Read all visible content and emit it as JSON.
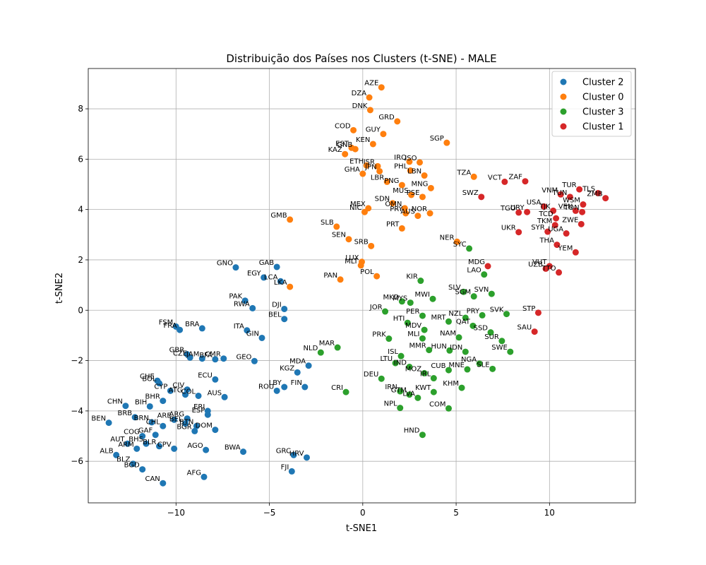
{
  "chart_data": {
    "type": "scatter",
    "title": "Distribuição dos Países nos Clusters (t-SNE) - MALE",
    "xlabel": "t-SNE1",
    "ylabel": "t-SNE2",
    "xlim": [
      -14.7,
      14.6
    ],
    "ylim": [
      -7.65,
      9.6
    ],
    "xticks": [
      -10,
      -5,
      0,
      5,
      10
    ],
    "yticks": [
      -6,
      -4,
      -2,
      0,
      2,
      4,
      6,
      8
    ],
    "grid": true,
    "legend_position": "top-right",
    "series": [
      {
        "name": "Cluster 2",
        "color": "#1f77b4",
        "points": [
          {
            "label": "GNO",
            "x": -6.8,
            "y": 1.7
          },
          {
            "label": "GAB",
            "x": -4.6,
            "y": 1.72
          },
          {
            "label": "EGY",
            "x": -5.3,
            "y": 1.3
          },
          {
            "label": "LCA",
            "x": -4.4,
            "y": 1.15
          },
          {
            "label": "PAK",
            "x": -6.3,
            "y": 0.38
          },
          {
            "label": "RWA",
            "x": -5.9,
            "y": 0.08
          },
          {
            "label": "DJI",
            "x": -4.2,
            "y": 0.05
          },
          {
            "label": "BEL",
            "x": -4.2,
            "y": -0.35
          },
          {
            "label": "ITA",
            "x": -6.2,
            "y": -0.8
          },
          {
            "label": "GIN",
            "x": -5.4,
            "y": -1.1
          },
          {
            "label": "FSM",
            "x": -10.0,
            "y": -0.65
          },
          {
            "label": "FRA",
            "x": -9.8,
            "y": -0.78
          },
          {
            "label": "BRA",
            "x": -8.6,
            "y": -0.72
          },
          {
            "label": "GBR",
            "x": -9.4,
            "y": -1.75
          },
          {
            "label": "CZE",
            "x": -9.25,
            "y": -1.88
          },
          {
            "label": "JAM",
            "x": -8.6,
            "y": -1.92
          },
          {
            "label": "BFA",
            "x": -7.9,
            "y": -1.95
          },
          {
            "label": "CMR",
            "x": -7.45,
            "y": -1.92
          },
          {
            "label": "GEO",
            "x": -5.8,
            "y": -2.02
          },
          {
            "label": "MDA",
            "x": -2.9,
            "y": -2.2
          },
          {
            "label": "KGZ",
            "x": -3.5,
            "y": -2.47
          },
          {
            "label": "CHE",
            "x": -11.0,
            "y": -2.8
          },
          {
            "label": "BOL",
            "x": -10.9,
            "y": -2.9
          },
          {
            "label": "ECU",
            "x": -7.9,
            "y": -2.75
          },
          {
            "label": "CYP",
            "x": -10.3,
            "y": -3.2
          },
          {
            "label": "CIV",
            "x": -9.4,
            "y": -3.15
          },
          {
            "label": "ATG",
            "x": -9.5,
            "y": -3.35
          },
          {
            "label": "COL",
            "x": -8.8,
            "y": -3.4
          },
          {
            "label": "AUS",
            "x": -7.4,
            "y": -3.45
          },
          {
            "label": "LBY",
            "x": -4.2,
            "y": -3.05
          },
          {
            "label": "FIN",
            "x": -3.1,
            "y": -3.05
          },
          {
            "label": "ROU",
            "x": -4.6,
            "y": -3.2
          },
          {
            "label": "BHR",
            "x": -10.7,
            "y": -3.6
          },
          {
            "label": "CHN",
            "x": -12.7,
            "y": -3.8
          },
          {
            "label": "BIH",
            "x": -11.4,
            "y": -3.82
          },
          {
            "label": "ERI",
            "x": -8.3,
            "y": -4.0
          },
          {
            "label": "ESP",
            "x": -8.3,
            "y": -4.15
          },
          {
            "label": "BRB",
            "x": -12.2,
            "y": -4.25
          },
          {
            "label": "ARE",
            "x": -10.1,
            "y": -4.35
          },
          {
            "label": "ARG",
            "x": -9.4,
            "y": -4.3
          },
          {
            "label": "BRN",
            "x": -11.3,
            "y": -4.45
          },
          {
            "label": "BEL2",
            "x": -9.5,
            "y": -4.5
          },
          {
            "label": "BEN",
            "x": -13.6,
            "y": -4.47
          },
          {
            "label": "CHL",
            "x": -10.7,
            "y": -4.6
          },
          {
            "label": "BTN",
            "x": -8.9,
            "y": -4.6
          },
          {
            "label": "DOM",
            "x": -7.9,
            "y": -4.75
          },
          {
            "label": "BGR",
            "x": -9.0,
            "y": -4.8
          },
          {
            "label": "COG",
            "x": -11.8,
            "y": -5.0
          },
          {
            "label": "GAF",
            "x": -11.1,
            "y": -4.95
          },
          {
            "label": "AUT",
            "x": -12.6,
            "y": -5.3
          },
          {
            "label": "ARM",
            "x": -12.1,
            "y": -5.5
          },
          {
            "label": "BHS",
            "x": -11.6,
            "y": -5.3
          },
          {
            "label": "BLR",
            "x": -10.9,
            "y": -5.4
          },
          {
            "label": "CPV",
            "x": -10.1,
            "y": -5.5
          },
          {
            "label": "ALB",
            "x": -13.2,
            "y": -5.75
          },
          {
            "label": "AGO",
            "x": -8.4,
            "y": -5.55
          },
          {
            "label": "BWA",
            "x": -6.4,
            "y": -5.62
          },
          {
            "label": "GRC",
            "x": -3.7,
            "y": -5.75
          },
          {
            "label": "HRV",
            "x": -3.0,
            "y": -5.85
          },
          {
            "label": "BLZ",
            "x": -12.3,
            "y": -6.1
          },
          {
            "label": "BGD",
            "x": -11.8,
            "y": -6.32
          },
          {
            "label": "FJI",
            "x": -3.8,
            "y": -6.4
          },
          {
            "label": "AFG",
            "x": -8.5,
            "y": -6.62
          },
          {
            "label": "CAN",
            "x": -10.7,
            "y": -6.87
          }
        ]
      },
      {
        "name": "Cluster 0",
        "color": "#ff7f0e",
        "points": [
          {
            "label": "AZE",
            "x": 1.0,
            "y": 8.85
          },
          {
            "label": "DZA",
            "x": 0.35,
            "y": 8.45
          },
          {
            "label": "DNK",
            "x": 0.4,
            "y": 7.95
          },
          {
            "label": "GRD",
            "x": 1.85,
            "y": 7.5
          },
          {
            "label": "COD",
            "x": -0.5,
            "y": 7.15
          },
          {
            "label": "GUY",
            "x": 1.1,
            "y": 7.0
          },
          {
            "label": "SGP",
            "x": 4.5,
            "y": 6.65
          },
          {
            "label": "KEN",
            "x": 0.55,
            "y": 6.6
          },
          {
            "label": "EST",
            "x": -0.6,
            "y": 6.45
          },
          {
            "label": "GNB",
            "x": -0.4,
            "y": 6.4
          },
          {
            "label": "KAZ",
            "x": -0.95,
            "y": 6.2
          },
          {
            "label": "IRQ",
            "x": 2.5,
            "y": 5.9
          },
          {
            "label": "ISO",
            "x": 3.05,
            "y": 5.87
          },
          {
            "label": "ETH",
            "x": 0.2,
            "y": 5.75
          },
          {
            "label": "ISR",
            "x": 0.8,
            "y": 5.72
          },
          {
            "label": "JPN",
            "x": 0.9,
            "y": 5.52
          },
          {
            "label": "PHL",
            "x": 2.55,
            "y": 5.55
          },
          {
            "label": "GHA",
            "x": 0.0,
            "y": 5.42
          },
          {
            "label": "LBN",
            "x": 3.3,
            "y": 5.35
          },
          {
            "label": "TZA",
            "x": 5.95,
            "y": 5.3
          },
          {
            "label": "LBR",
            "x": 1.3,
            "y": 5.1
          },
          {
            "label": "PNG",
            "x": 2.1,
            "y": 4.97
          },
          {
            "label": "MNG",
            "x": 3.65,
            "y": 4.85
          },
          {
            "label": "MUS",
            "x": 2.6,
            "y": 4.58
          },
          {
            "label": "PSE",
            "x": 3.2,
            "y": 4.5
          },
          {
            "label": "SDN",
            "x": 1.6,
            "y": 4.25
          },
          {
            "label": "OMN",
            "x": 2.25,
            "y": 4.05
          },
          {
            "label": "MEX",
            "x": 0.3,
            "y": 4.05
          },
          {
            "label": "NIC",
            "x": 0.1,
            "y": 3.9
          },
          {
            "label": "PRY",
            "x": 2.3,
            "y": 3.85
          },
          {
            "label": "NOR",
            "x": 3.6,
            "y": 3.85
          },
          {
            "label": "AUS2",
            "x": 2.95,
            "y": 3.75
          },
          {
            "label": "GMB",
            "x": -3.9,
            "y": 3.6
          },
          {
            "label": "SLB",
            "x": -1.4,
            "y": 3.32
          },
          {
            "label": "PRT",
            "x": 2.1,
            "y": 3.25
          },
          {
            "label": "SEN",
            "x": -0.75,
            "y": 2.82
          },
          {
            "label": "SRB",
            "x": 0.45,
            "y": 2.55
          },
          {
            "label": "NER",
            "x": 5.05,
            "y": 2.72
          },
          {
            "label": "LUX",
            "x": -0.05,
            "y": 1.92
          },
          {
            "label": "MLT",
            "x": -0.1,
            "y": 1.78
          },
          {
            "label": "POL",
            "x": 0.75,
            "y": 1.35
          },
          {
            "label": "PAN",
            "x": -1.2,
            "y": 1.22
          },
          {
            "label": "LKA",
            "x": -3.9,
            "y": 0.93
          }
        ]
      },
      {
        "name": "Cluster 3",
        "color": "#2ca02c",
        "points": [
          {
            "label": "SYC",
            "x": 5.7,
            "y": 2.45
          },
          {
            "label": "LAO",
            "x": 6.5,
            "y": 1.42
          },
          {
            "label": "KIR",
            "x": 3.1,
            "y": 1.17
          },
          {
            "label": "SLV",
            "x": 5.4,
            "y": 0.73
          },
          {
            "label": "SVN",
            "x": 6.9,
            "y": 0.65
          },
          {
            "label": "SGM",
            "x": 5.95,
            "y": 0.55
          },
          {
            "label": "MWI",
            "x": 3.75,
            "y": 0.45
          },
          {
            "label": "MKD",
            "x": 2.1,
            "y": 0.35
          },
          {
            "label": "MYS",
            "x": 2.55,
            "y": 0.3
          },
          {
            "label": "JOR",
            "x": 1.2,
            "y": -0.05
          },
          {
            "label": "PER",
            "x": 3.2,
            "y": -0.22
          },
          {
            "label": "SVK",
            "x": 7.7,
            "y": -0.15
          },
          {
            "label": "PRY2",
            "x": 6.4,
            "y": -0.2
          },
          {
            "label": "NZL",
            "x": 5.5,
            "y": -0.3
          },
          {
            "label": "HTI",
            "x": 2.4,
            "y": -0.5
          },
          {
            "label": "MRT",
            "x": 4.6,
            "y": -0.45
          },
          {
            "label": "QAT",
            "x": 5.9,
            "y": -0.62
          },
          {
            "label": "MDV",
            "x": 3.3,
            "y": -0.78
          },
          {
            "label": "SSD",
            "x": 6.85,
            "y": -0.88
          },
          {
            "label": "NAM",
            "x": 5.15,
            "y": -1.08
          },
          {
            "label": "MLI",
            "x": 3.2,
            "y": -1.12
          },
          {
            "label": "PRK",
            "x": 1.4,
            "y": -1.13
          },
          {
            "label": "SUR",
            "x": 7.45,
            "y": -1.22
          },
          {
            "label": "MAR",
            "x": -1.35,
            "y": -1.48
          },
          {
            "label": "MMR",
            "x": 3.55,
            "y": -1.58
          },
          {
            "label": "HUN",
            "x": 4.65,
            "y": -1.6
          },
          {
            "label": "IDN",
            "x": 5.5,
            "y": -1.65
          },
          {
            "label": "SWE",
            "x": 7.9,
            "y": -1.65
          },
          {
            "label": "NLD",
            "x": -2.25,
            "y": -1.68
          },
          {
            "label": "ISL",
            "x": 2.05,
            "y": -1.82
          },
          {
            "label": "LTU",
            "x": 1.75,
            "y": -2.1
          },
          {
            "label": "NGA",
            "x": 6.25,
            "y": -2.12
          },
          {
            "label": "IND",
            "x": 2.5,
            "y": -2.25
          },
          {
            "label": "MNE",
            "x": 5.6,
            "y": -2.35
          },
          {
            "label": "SLE",
            "x": 6.95,
            "y": -2.33
          },
          {
            "label": "CUB",
            "x": 4.6,
            "y": -2.38
          },
          {
            "label": "MOZ",
            "x": 3.3,
            "y": -2.5
          },
          {
            "label": "IRL",
            "x": 3.8,
            "y": -2.7
          },
          {
            "label": "DEU",
            "x": 1.0,
            "y": -2.72
          },
          {
            "label": "KHM",
            "x": 5.3,
            "y": -3.08
          },
          {
            "label": "CRI",
            "x": -0.9,
            "y": -3.25
          },
          {
            "label": "IRN",
            "x": 2.0,
            "y": -3.22
          },
          {
            "label": "KWT",
            "x": 3.8,
            "y": -3.25
          },
          {
            "label": "GTM",
            "x": 2.5,
            "y": -3.35
          },
          {
            "label": "LVA",
            "x": 2.95,
            "y": -3.48
          },
          {
            "label": "NPL",
            "x": 2.0,
            "y": -3.88
          },
          {
            "label": "COM",
            "x": 4.6,
            "y": -3.9
          },
          {
            "label": "HND",
            "x": 3.2,
            "y": -4.95
          }
        ]
      },
      {
        "name": "Cluster 1",
        "color": "#d62728",
        "points": [
          {
            "label": "VCT",
            "x": 7.6,
            "y": 5.1
          },
          {
            "label": "ZAF",
            "x": 8.7,
            "y": 5.12
          },
          {
            "label": "VNM",
            "x": 10.6,
            "y": 4.6
          },
          {
            "label": "TUR",
            "x": 11.6,
            "y": 4.8
          },
          {
            "label": "TLS",
            "x": 12.6,
            "y": 4.65
          },
          {
            "label": "ZMB",
            "x": 13.0,
            "y": 4.45
          },
          {
            "label": "TUN",
            "x": 11.1,
            "y": 4.5
          },
          {
            "label": "SWZ",
            "x": 6.35,
            "y": 4.5
          },
          {
            "label": "WSM",
            "x": 11.8,
            "y": 4.2
          },
          {
            "label": "USA",
            "x": 9.7,
            "y": 4.12
          },
          {
            "label": "TJK",
            "x": 10.2,
            "y": 3.95
          },
          {
            "label": "VEN",
            "x": 11.4,
            "y": 3.95
          },
          {
            "label": "URY",
            "x": 8.8,
            "y": 3.9
          },
          {
            "label": "TGO",
            "x": 8.35,
            "y": 3.88
          },
          {
            "label": "TON",
            "x": 11.75,
            "y": 3.9
          },
          {
            "label": "TCD",
            "x": 10.35,
            "y": 3.65
          },
          {
            "label": "TKM",
            "x": 10.3,
            "y": 3.38
          },
          {
            "label": "ZWE",
            "x": 11.7,
            "y": 3.42
          },
          {
            "label": "SYR",
            "x": 9.9,
            "y": 3.12
          },
          {
            "label": "UGA",
            "x": 10.9,
            "y": 3.05
          },
          {
            "label": "UKR",
            "x": 8.35,
            "y": 3.1
          },
          {
            "label": "THA",
            "x": 10.4,
            "y": 2.6
          },
          {
            "label": "YEM",
            "x": 11.4,
            "y": 2.3
          },
          {
            "label": "MDG",
            "x": 6.7,
            "y": 1.75
          },
          {
            "label": "VUT",
            "x": 10.0,
            "y": 1.75
          },
          {
            "label": "UZB",
            "x": 9.8,
            "y": 1.65
          },
          {
            "label": "TTO",
            "x": 10.5,
            "y": 1.5
          },
          {
            "label": "STP",
            "x": 9.4,
            "y": -0.1
          },
          {
            "label": "SAU",
            "x": 9.2,
            "y": -0.85
          }
        ]
      }
    ]
  }
}
